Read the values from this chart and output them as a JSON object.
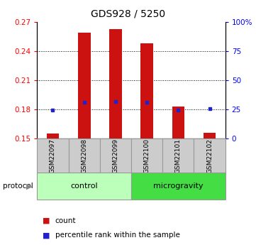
{
  "title": "GDS928 / 5250",
  "samples": [
    "GSM22097",
    "GSM22098",
    "GSM22099",
    "GSM22100",
    "GSM22101",
    "GSM22102"
  ],
  "bar_bottom": 0.15,
  "bar_tops": [
    0.155,
    0.259,
    0.263,
    0.248,
    0.183,
    0.156
  ],
  "percentile_values": [
    0.1795,
    0.1875,
    0.1878,
    0.1875,
    0.179,
    0.181
  ],
  "ylim": [
    0.15,
    0.27
  ],
  "yticks_left": [
    0.15,
    0.18,
    0.21,
    0.24,
    0.27
  ],
  "yticks_right": [
    0,
    25,
    50,
    75,
    100
  ],
  "bar_color": "#cc1111",
  "dot_color": "#2222cc",
  "groups": [
    {
      "label": "control",
      "samples": [
        0,
        1,
        2
      ],
      "color": "#bbffbb"
    },
    {
      "label": "microgravity",
      "samples": [
        3,
        4,
        5
      ],
      "color": "#44dd44"
    }
  ],
  "protocol_label": "protocol",
  "legend_items": [
    "count",
    "percentile rank within the sample"
  ],
  "bar_width": 0.4,
  "title_fontsize": 10,
  "tick_fontsize": 7.5,
  "sample_fontsize": 6.5,
  "group_fontsize": 8,
  "legend_fontsize": 7.5
}
